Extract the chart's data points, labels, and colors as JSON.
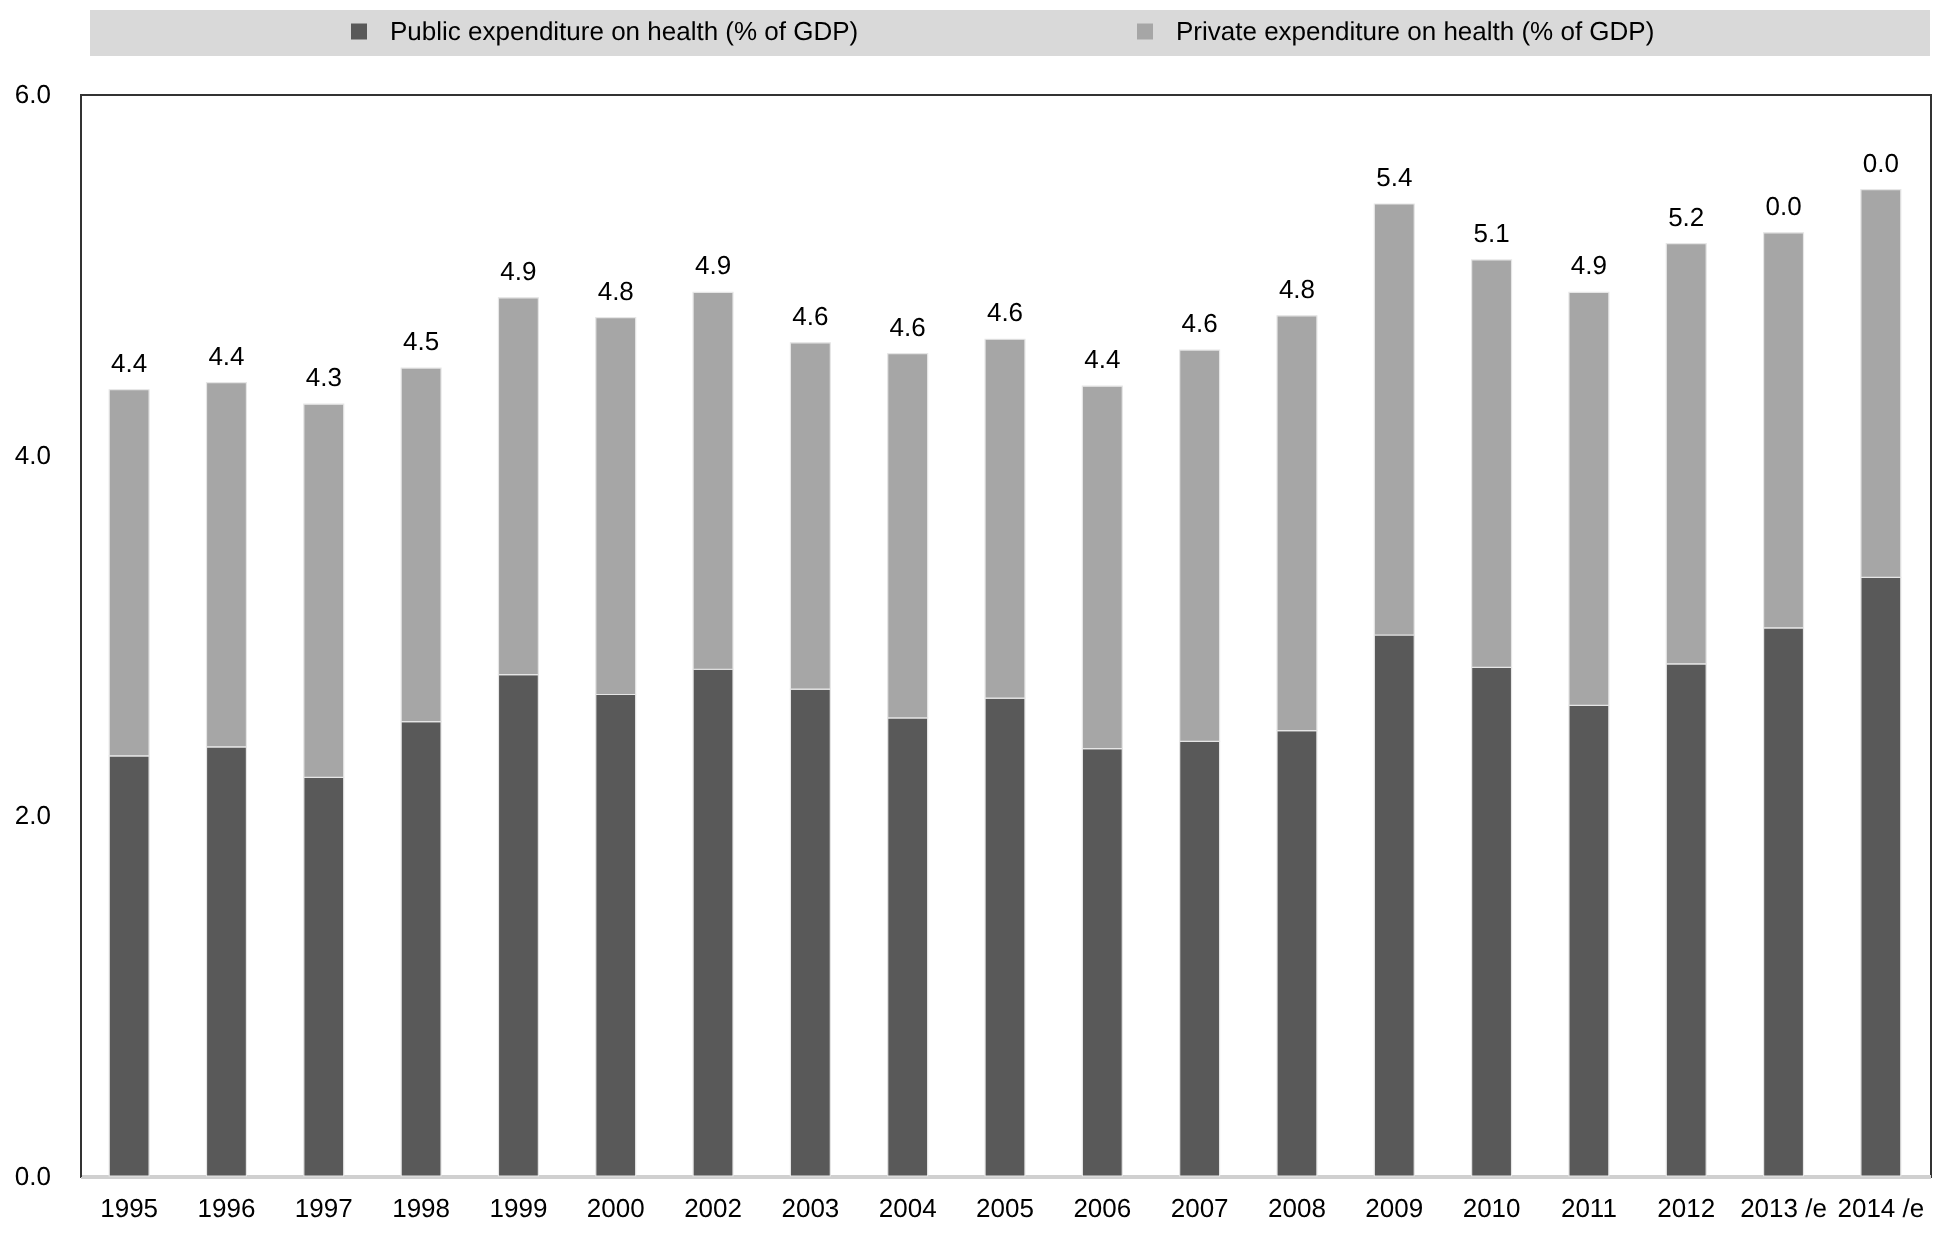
{
  "chart_data": {
    "type": "bar",
    "stacked": true,
    "categories": [
      "1995",
      "1996",
      "1997",
      "1998",
      "1999",
      "2000",
      "2002",
      "2003",
      "2004",
      "2005",
      "2006",
      "2007",
      "2008",
      "2009",
      "2010",
      "2011",
      "2012",
      "2013 /e",
      "2014 /e"
    ],
    "series": [
      {
        "name": "Public expenditure on health (% of GDP)",
        "color": "#595959",
        "values": [
          2.33,
          2.38,
          2.21,
          2.52,
          2.78,
          2.67,
          2.81,
          2.7,
          2.54,
          2.65,
          2.37,
          2.41,
          2.47,
          3.0,
          2.82,
          2.61,
          2.84,
          3.04,
          3.32
        ]
      },
      {
        "name": "Private expenditure on health (% of GDP)",
        "color": "#a6a6a6",
        "values": [
          2.03,
          2.02,
          2.07,
          1.96,
          2.09,
          2.09,
          2.09,
          1.92,
          2.02,
          1.99,
          2.01,
          2.17,
          2.3,
          2.39,
          2.26,
          2.29,
          2.33,
          2.19,
          2.15
        ]
      }
    ],
    "totals": [
      "4.4",
      "4.4",
      "4.3",
      "4.5",
      "4.9",
      "4.8",
      "4.9",
      "4.6",
      "4.6",
      "4.6",
      "4.4",
      "4.6",
      "4.8",
      "5.4",
      "5.1",
      "4.9",
      "5.2",
      null,
      null
    ],
    "annotations": [
      {
        "text": "0.0",
        "x": "2013 /e",
        "y": 5.23
      },
      {
        "text": "0.0",
        "x": "2014 /e",
        "y": 5.47
      }
    ],
    "ylim": [
      0,
      6
    ],
    "yticks": [
      {
        "value": 0,
        "label": "0.0"
      },
      {
        "value": 2,
        "label": "2.0"
      },
      {
        "value": 4,
        "label": "4.0"
      },
      {
        "value": 6,
        "label": "6.0"
      }
    ],
    "grid": false,
    "legend": "top"
  }
}
